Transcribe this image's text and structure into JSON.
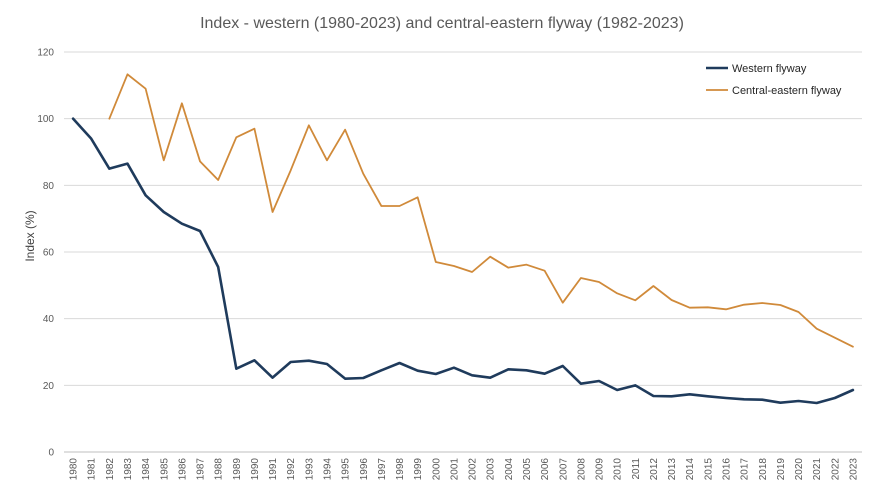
{
  "chart_data": {
    "type": "line",
    "title": "Index - western (1980-2023) and central-eastern flyway (1982-2023)",
    "xlabel": "",
    "ylabel": "Index (%)",
    "ylim": [
      0,
      120
    ],
    "yticks": [
      0,
      20,
      40,
      60,
      80,
      100,
      120
    ],
    "grid": true,
    "legend_position": "top-right",
    "categories": [
      "1980",
      "1981",
      "1982",
      "1983",
      "1984",
      "1985",
      "1986",
      "1987",
      "1988",
      "1989",
      "1990",
      "1991",
      "1992",
      "1993",
      "1994",
      "1995",
      "1996",
      "1997",
      "1998",
      "1999",
      "2000",
      "2001",
      "2002",
      "2003",
      "2004",
      "2005",
      "2006",
      "2007",
      "2008",
      "2009",
      "2010",
      "2011",
      "2012",
      "2013",
      "2014",
      "2015",
      "2016",
      "2017",
      "2018",
      "2019",
      "2020",
      "2021",
      "2022",
      "2023"
    ],
    "series": [
      {
        "name": "Western flyway",
        "color": "#1f3b5c",
        "values": [
          100,
          94,
          85,
          86.5,
          77,
          72,
          68.5,
          66.3,
          55.5,
          25,
          27.5,
          22.3,
          27,
          27.4,
          26.4,
          22,
          22.2,
          24.5,
          26.7,
          24.4,
          23.4,
          25.3,
          23,
          22.3,
          24.8,
          24.5,
          23.5,
          25.8,
          20.5,
          21.3,
          18.6,
          20,
          16.8,
          16.7,
          17.3,
          16.7,
          16.2,
          15.8,
          15.7,
          14.8,
          15.3,
          14.7,
          16.2,
          18.6
        ]
      },
      {
        "name": "Central-eastern flyway",
        "color": "#d08a3a",
        "values": [
          null,
          null,
          100,
          113.3,
          109,
          87.5,
          104.6,
          87.2,
          81.6,
          94.4,
          97,
          72,
          84.5,
          98,
          87.5,
          96.7,
          83.5,
          73.8,
          73.8,
          76.4,
          57,
          55.8,
          54,
          58.6,
          55.3,
          56.2,
          54.4,
          44.8,
          52.2,
          51,
          47.6,
          45.5,
          49.8,
          45.6,
          43.3,
          43.4,
          42.8,
          44.2,
          44.7,
          44.1,
          42,
          37,
          34.3,
          31.6
        ]
      }
    ]
  }
}
